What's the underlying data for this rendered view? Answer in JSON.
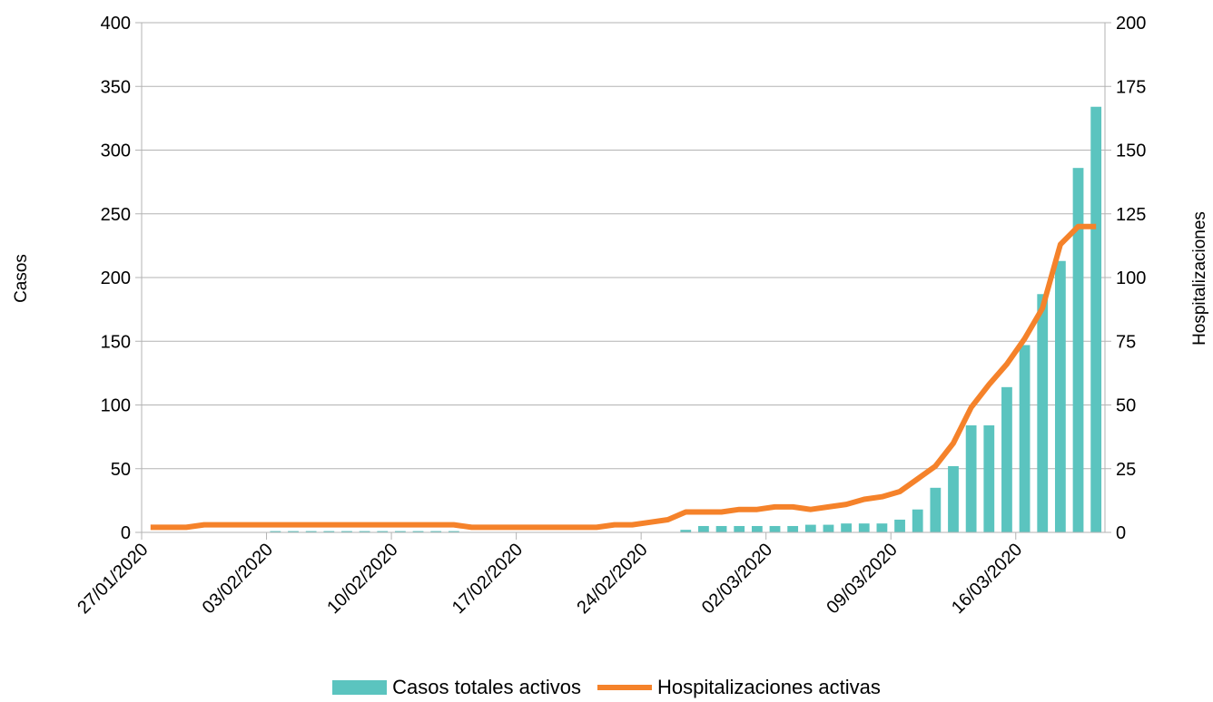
{
  "chart_data": {
    "type": "bar",
    "title": "",
    "xlabel": "",
    "ylabel": "Casos",
    "y2label": "Hospitalizaciones",
    "ylim": [
      0,
      400
    ],
    "y2lim": [
      0,
      200
    ],
    "yticks": [
      "0",
      "50",
      "100",
      "150",
      "200",
      "250",
      "300",
      "350",
      "400"
    ],
    "y2ticks": [
      "0",
      "25",
      "50",
      "75",
      "100",
      "125",
      "150",
      "175",
      "200"
    ],
    "x_tick_labels": [
      "27/01/2020",
      "03/02/2020",
      "10/02/2020",
      "17/02/2020",
      "24/02/2020",
      "02/03/2020",
      "09/03/2020",
      "16/03/2020"
    ],
    "x_start": "27/01/2020",
    "x_end": "22/03/2020",
    "grid": true,
    "legend_position": "bottom",
    "series": [
      {
        "name": "Casos totales activos",
        "kind": "bar",
        "axis": "left",
        "color": "#5bc4bf",
        "values": [
          0,
          0,
          0,
          0,
          0,
          0,
          0,
          1,
          1,
          1,
          1,
          1,
          1,
          1,
          1,
          1,
          1,
          1,
          0,
          0,
          0,
          0,
          0,
          0,
          0,
          0,
          0,
          0,
          0,
          0,
          2,
          5,
          5,
          5,
          5,
          5,
          5,
          6,
          6,
          7,
          7,
          7,
          10,
          18,
          35,
          52,
          84,
          84,
          114,
          147,
          187,
          213,
          286,
          334
        ]
      },
      {
        "name": "Hospitalizaciones activas",
        "kind": "line",
        "axis": "right",
        "color": "#f5822a",
        "values": [
          2,
          2,
          2,
          3,
          3,
          3,
          3,
          3,
          3,
          3,
          3,
          3,
          3,
          3,
          3,
          3,
          3,
          3,
          2,
          2,
          2,
          2,
          2,
          2,
          2,
          2,
          3,
          3,
          4,
          5,
          8,
          8,
          8,
          9,
          9,
          10,
          10,
          9,
          10,
          11,
          13,
          14,
          16,
          21,
          26,
          35,
          49,
          58,
          66,
          76,
          88,
          113,
          120,
          120
        ]
      }
    ]
  }
}
